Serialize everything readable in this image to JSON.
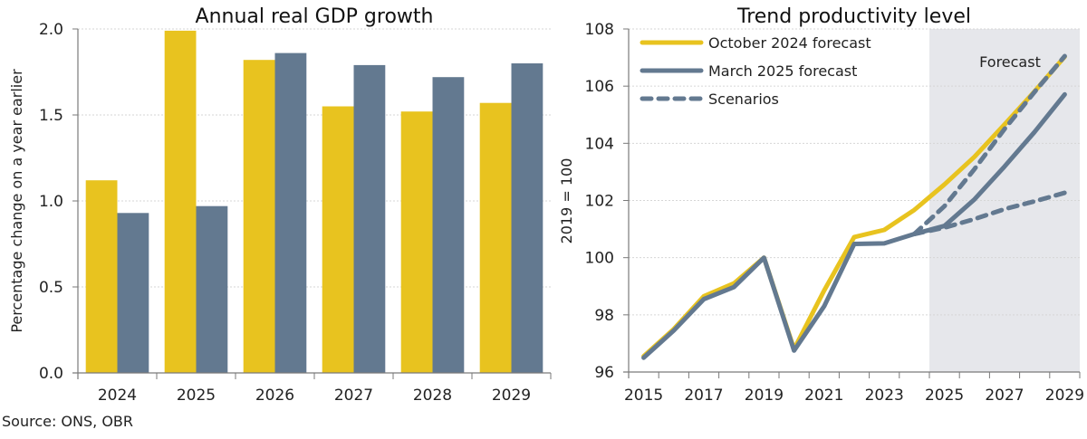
{
  "source": "Source: ONS, OBR",
  "colors": {
    "yellow": "#E8C31F",
    "grey": "#637990",
    "shade": "#E6E7EB",
    "grid": "#D6D6D6",
    "axis": "#7a7a7a"
  },
  "chart_data": [
    {
      "type": "bar",
      "title": "Annual real GDP growth",
      "xlabel": "",
      "ylabel": "Percentage change on a year earlier",
      "categories": [
        "2024",
        "2025",
        "2026",
        "2027",
        "2028",
        "2029"
      ],
      "series": [
        {
          "name": "October 2024 forecast",
          "color": "#E8C31F",
          "values": [
            1.12,
            1.99,
            1.82,
            1.55,
            1.52,
            1.57
          ]
        },
        {
          "name": "March 2025 forecast",
          "color": "#637990",
          "values": [
            0.93,
            0.97,
            1.86,
            1.79,
            1.72,
            1.8
          ]
        }
      ],
      "ylim": [
        0,
        2.0
      ],
      "yticks": [
        "0.0",
        "0.5",
        "1.0",
        "1.5",
        "2.0"
      ],
      "yticks_values": [
        0,
        0.5,
        1.0,
        1.5,
        2.0
      ],
      "grid": true,
      "legend": "none"
    },
    {
      "type": "line",
      "title": "Trend productivity level",
      "xlabel": "",
      "ylabel": "2019 = 100",
      "x": [
        2015,
        2016,
        2017,
        2018,
        2019,
        2020,
        2021,
        2022,
        2023,
        2024,
        2025,
        2026,
        2027,
        2028,
        2029
      ],
      "xticks": [
        "2015",
        "2017",
        "2019",
        "2021",
        "2023",
        "2025",
        "2027",
        "2029"
      ],
      "xticks_values": [
        2015,
        2017,
        2019,
        2021,
        2023,
        2025,
        2027,
        2029
      ],
      "series": [
        {
          "name": "October 2024 forecast",
          "style": "solid",
          "color": "#E8C31F",
          "x": [
            2015,
            2016,
            2017,
            2018,
            2019,
            2020,
            2021,
            2022,
            2023,
            2024,
            2025,
            2026,
            2027,
            2028,
            2029
          ],
          "values": [
            96.55,
            97.5,
            98.65,
            99.1,
            100.0,
            96.8,
            98.85,
            100.72,
            100.97,
            101.67,
            102.56,
            103.53,
            104.66,
            105.82,
            107.03
          ]
        },
        {
          "name": "March 2025 forecast",
          "style": "solid",
          "color": "#637990",
          "x": [
            2015,
            2016,
            2017,
            2018,
            2019,
            2020,
            2021,
            2022,
            2023,
            2024,
            2025,
            2026,
            2027,
            2028,
            2029
          ],
          "values": [
            96.5,
            97.45,
            98.55,
            98.97,
            100.0,
            96.75,
            98.3,
            100.48,
            100.5,
            100.83,
            101.11,
            102.04,
            103.19,
            104.4,
            105.71
          ]
        },
        {
          "name": "Scenarios",
          "style": "dashed",
          "color": "#637990",
          "x": [
            2024,
            2025,
            2026,
            2027,
            2028,
            2029
          ],
          "values": [
            100.83,
            101.8,
            103.1,
            104.5,
            105.8,
            107.05
          ]
        },
        {
          "name": "Scenarios (lower)",
          "style": "dashed",
          "color": "#637990",
          "legend": false,
          "x": [
            2024,
            2025,
            2026,
            2027,
            2028,
            2029
          ],
          "values": [
            100.83,
            101.05,
            101.35,
            101.7,
            101.97,
            102.27
          ]
        }
      ],
      "legend_entries": [
        "October 2024 forecast",
        "March 2025 forecast",
        "Scenarios"
      ],
      "ylim": [
        96,
        108
      ],
      "yticks": [
        "96",
        "98",
        "100",
        "102",
        "104",
        "106",
        "108"
      ],
      "yticks_values": [
        96,
        98,
        100,
        102,
        104,
        106,
        108
      ],
      "shaded_region": {
        "from": 2025,
        "to": 2029,
        "label": "Forecast"
      },
      "grid": true,
      "legend": "top-left"
    }
  ]
}
